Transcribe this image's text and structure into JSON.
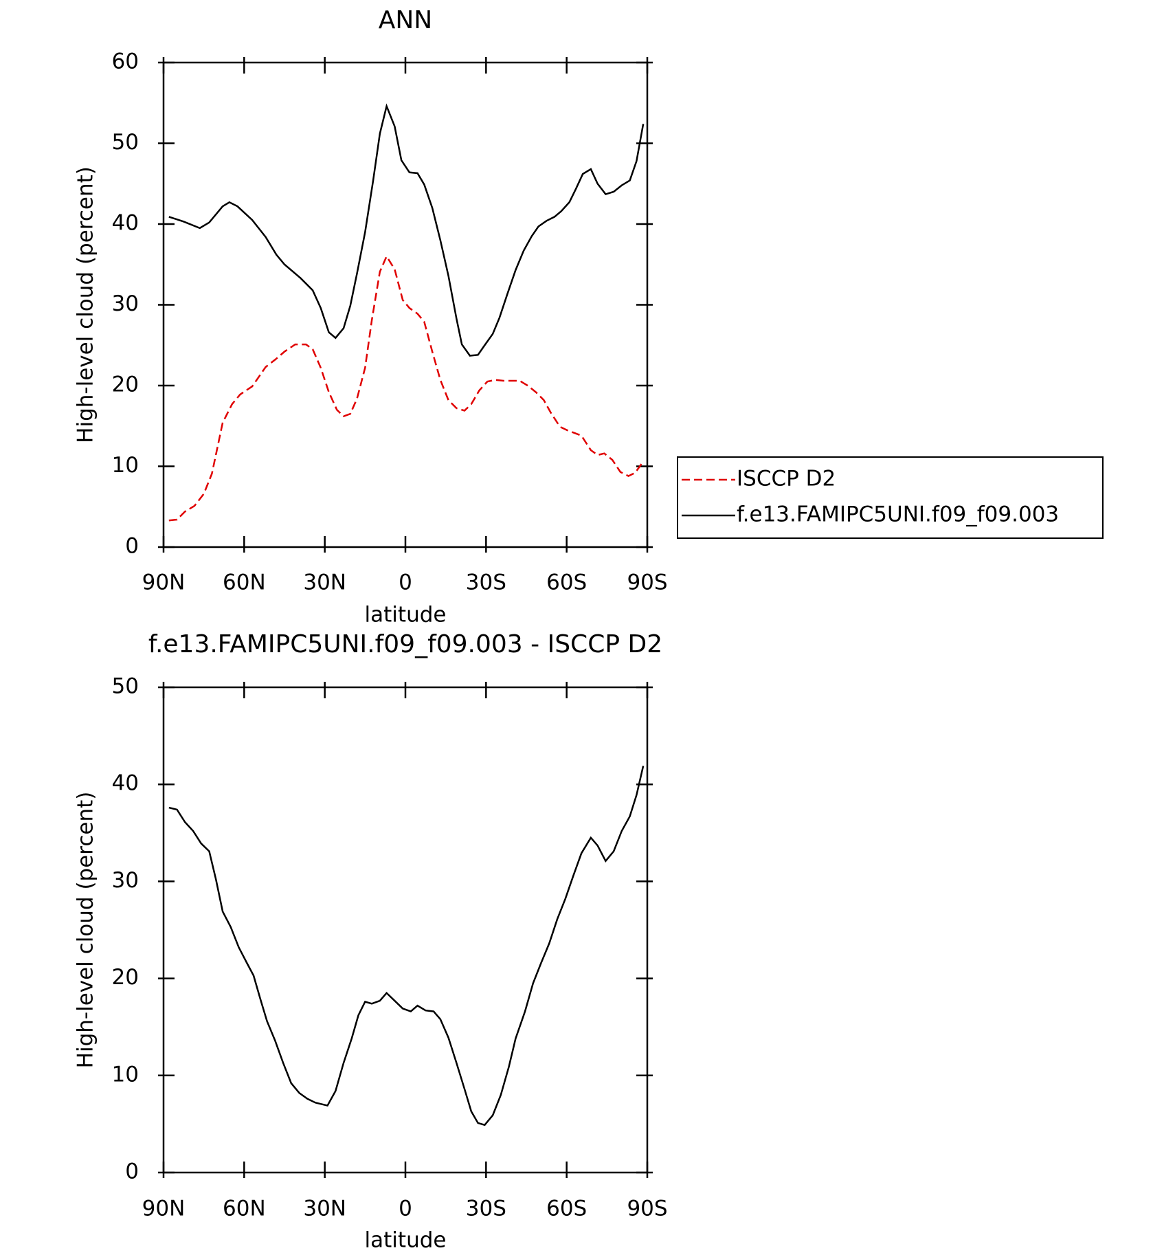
{
  "chart_data": [
    {
      "type": "line",
      "title": "ANN",
      "xlabel": "latitude",
      "ylabel": "High-level cloud (percent)",
      "xlim": [
        90,
        -90
      ],
      "ylim": [
        0,
        60
      ],
      "xticks": [
        {
          "value": 90,
          "label": "90N"
        },
        {
          "value": 60,
          "label": "60N"
        },
        {
          "value": 30,
          "label": "30N"
        },
        0,
        {
          "value": -30,
          "label": "30S"
        },
        {
          "value": -60,
          "label": "60S"
        },
        {
          "value": -90,
          "label": "90S"
        }
      ],
      "yticks": [
        0,
        10,
        20,
        30,
        40,
        50,
        60
      ],
      "legend": "outside-right",
      "series": [
        {
          "name": "ISCCP D2",
          "color": "#e00000",
          "dash": true,
          "x": [
            88,
            85,
            82,
            78.5,
            75,
            72,
            68,
            64.5,
            61.5,
            57,
            52,
            48.5,
            45,
            41,
            37,
            34.5,
            31.5,
            28.5,
            25.5,
            23,
            20.5,
            18,
            15,
            12.5,
            9.5,
            7,
            4,
            1,
            -1.5,
            -4.5,
            -7,
            -10,
            -13,
            -16,
            -19,
            -22,
            -24.5,
            -27.5,
            -30.5,
            -33.5,
            -36.5,
            -39.5,
            -42.5,
            -45.5,
            -48.5,
            -51.5,
            -54,
            -57.5,
            -60,
            -65.5,
            -69,
            -71.5,
            -74,
            -77,
            -80,
            -83,
            -85.5,
            -88.5
          ],
          "values": [
            3.3,
            3.4,
            4.4,
            5.1,
            6.6,
            9.1,
            15.4,
            17.7,
            18.9,
            19.9,
            22.3,
            23.2,
            24.2,
            25.1,
            25.1,
            24.5,
            22.2,
            19.2,
            17,
            16.2,
            16.5,
            18.4,
            22.2,
            28.1,
            34.1,
            36,
            34.4,
            30.6,
            29.6,
            28.9,
            27.9,
            24.2,
            20.7,
            18.2,
            17.2,
            16.9,
            17.7,
            19.4,
            20.5,
            20.7,
            20.6,
            20.6,
            20.6,
            20,
            19.2,
            18.2,
            16.7,
            14.9,
            14.5,
            13.8,
            12,
            11.4,
            11.6,
            10.8,
            9.3,
            8.8,
            9.2,
            10.6
          ]
        },
        {
          "name": "f.e13.FAMIPC5UNI.f09_f09.003",
          "color": "#000000",
          "dash": false,
          "x": [
            88,
            82.5,
            76.5,
            73,
            68,
            65.5,
            62.5,
            57,
            52,
            48,
            45,
            39,
            34.5,
            31.5,
            28.5,
            26,
            23,
            20.5,
            18,
            15,
            12,
            9.5,
            7,
            4,
            1.5,
            -1.5,
            -4.5,
            -7,
            -10,
            -13,
            -16,
            -19,
            -21,
            -24,
            -27,
            -29.5,
            -32.5,
            -35,
            -38,
            -41,
            -44,
            -47,
            -49.5,
            -52.5,
            -55.5,
            -58,
            -61,
            -63.5,
            -66,
            -69,
            -71.5,
            -74.5,
            -77.5,
            -80.5,
            -83.5,
            -86,
            -88.5
          ],
          "values": [
            40.9,
            40.3,
            39.5,
            40.2,
            42.2,
            42.7,
            42.2,
            40.5,
            38.4,
            36.2,
            35,
            33.3,
            31.8,
            29.6,
            26.6,
            25.9,
            27.1,
            29.9,
            33.9,
            39,
            45.4,
            51.2,
            54.6,
            52.1,
            47.9,
            46.4,
            46.3,
            44.9,
            42,
            38,
            33.6,
            28.3,
            25.1,
            23.7,
            23.8,
            25,
            26.4,
            28.4,
            31.4,
            34.3,
            36.7,
            38.5,
            39.7,
            40.4,
            40.9,
            41.6,
            42.7,
            44.4,
            46.2,
            46.8,
            45,
            43.7,
            44,
            44.8,
            45.4,
            47.8,
            52.4
          ]
        }
      ]
    },
    {
      "type": "line",
      "title": "f.e13.FAMIPC5UNI.f09_f09.003 - ISCCP D2",
      "xlabel": "latitude",
      "ylabel": "High-level cloud (percent)",
      "xlim": [
        90,
        -90
      ],
      "ylim": [
        0,
        50
      ],
      "xticks": [
        {
          "value": 90,
          "label": "90N"
        },
        {
          "value": 60,
          "label": "60N"
        },
        {
          "value": 30,
          "label": "30N"
        },
        0,
        {
          "value": -30,
          "label": "30S"
        },
        {
          "value": -60,
          "label": "60S"
        },
        {
          "value": -90,
          "label": "90S"
        }
      ],
      "yticks": [
        0,
        10,
        20,
        30,
        40,
        50
      ],
      "series": [
        {
          "color": "#000000",
          "dash": false,
          "x": [
            88,
            85,
            82,
            79,
            76,
            73,
            70.5,
            68,
            65,
            62,
            59,
            56.5,
            54,
            51.5,
            48.5,
            45.5,
            42.5,
            39.5,
            36.5,
            33.5,
            29,
            26,
            23,
            20,
            17.5,
            15,
            12.5,
            9.5,
            7,
            4,
            1,
            -2,
            -4.5,
            -7.5,
            -10.5,
            -13,
            -16,
            -19,
            -22,
            -24.5,
            -27,
            -29.5,
            -32.5,
            -35.5,
            -38.5,
            -41,
            -44.5,
            -47.5,
            -50.5,
            -53.5,
            -56.5,
            -59.5,
            -62.5,
            -65.5,
            -69,
            -71.5,
            -74.5,
            -77.5,
            -80.5,
            -83.5,
            -86,
            -88.5
          ],
          "values": [
            37.6,
            37.4,
            36.1,
            35.2,
            33.9,
            33.1,
            30.2,
            26.9,
            25.3,
            23.2,
            21.6,
            20.3,
            17.9,
            15.6,
            13.6,
            11.3,
            9.2,
            8.2,
            7.6,
            7.2,
            6.9,
            8.4,
            11.3,
            13.8,
            16.2,
            17.6,
            17.4,
            17.7,
            18.5,
            17.7,
            16.9,
            16.6,
            17.2,
            16.7,
            16.6,
            15.8,
            13.9,
            11.3,
            8.6,
            6.3,
            5.1,
            4.9,
            5.9,
            8,
            10.9,
            13.8,
            16.6,
            19.5,
            21.6,
            23.6,
            26.1,
            28.2,
            30.6,
            32.9,
            34.5,
            33.7,
            32.1,
            33.1,
            35.2,
            36.7,
            38.9,
            41.9
          ]
        }
      ]
    }
  ]
}
